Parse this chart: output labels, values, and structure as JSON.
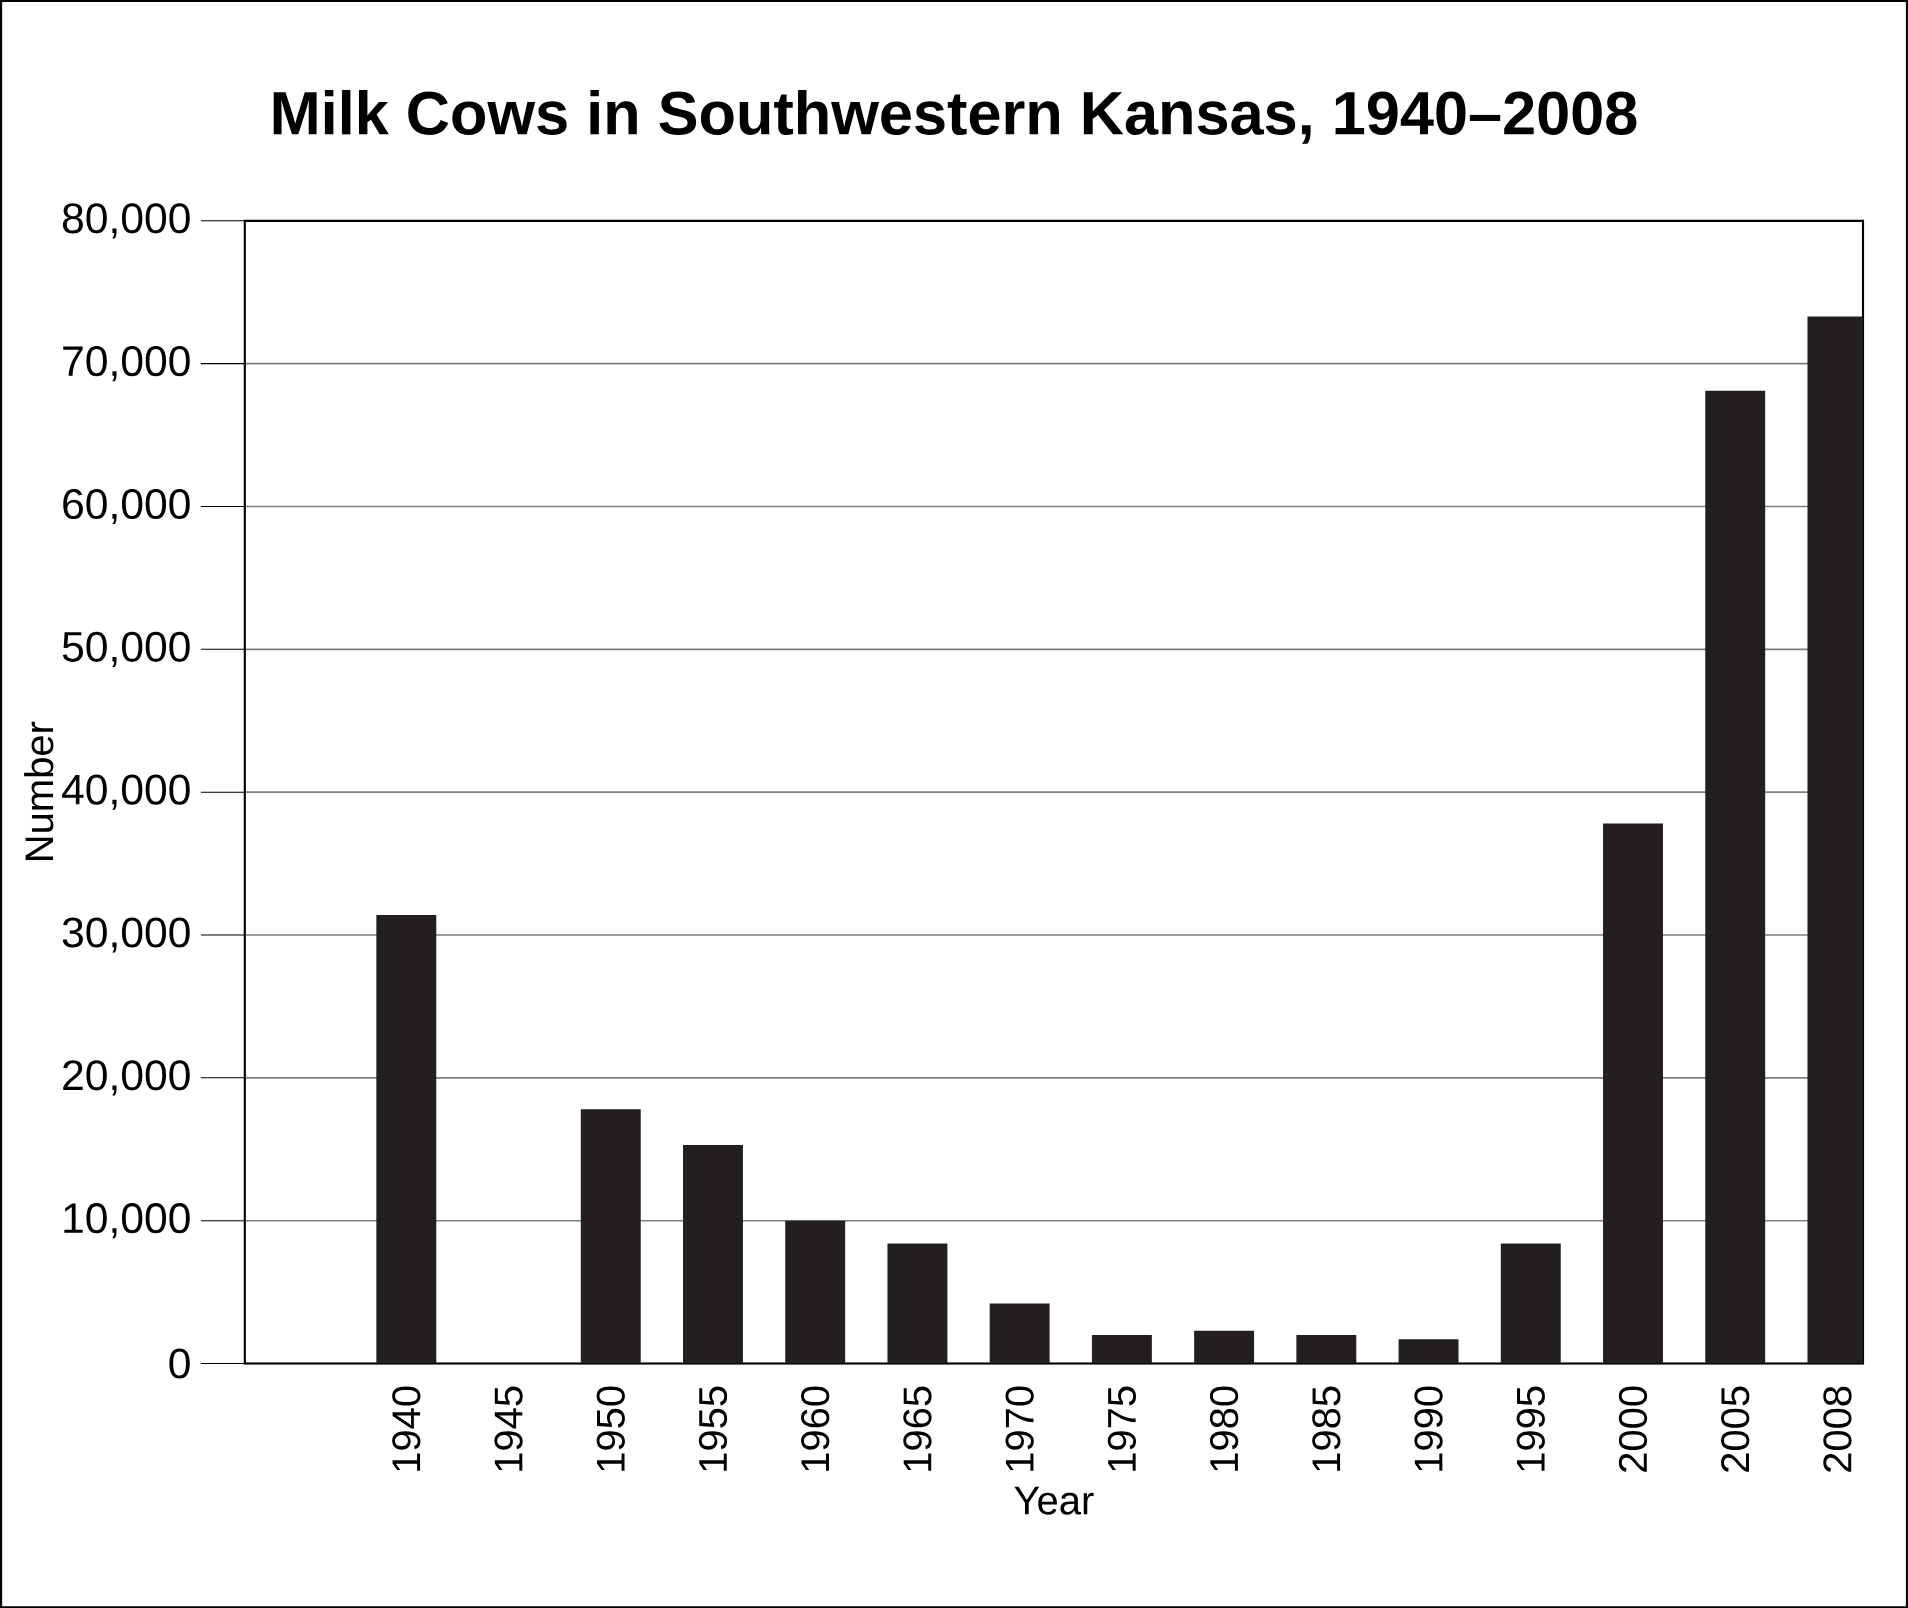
{
  "chart_data": {
    "type": "bar",
    "title": "Milk Cows in Southwestern Kansas, 1940–2008",
    "xlabel": "Year",
    "ylabel": "Number",
    "categories": [
      "1940",
      "1945",
      "1950",
      "1955",
      "1960",
      "1965",
      "1970",
      "1975",
      "1980",
      "1985",
      "1990",
      "1995",
      "2000",
      "2005",
      "2008"
    ],
    "values": [
      31400,
      null,
      17800,
      15300,
      10000,
      8400,
      4200,
      2000,
      2300,
      2000,
      1700,
      8400,
      37800,
      68100,
      73300
    ],
    "color": "#231f20",
    "ylim": [
      0,
      80000
    ],
    "yticks": [
      0,
      {
        "value": 10000,
        "label": "10,000"
      },
      {
        "value": 20000,
        "label": "20,000"
      },
      {
        "value": 30000,
        "label": "30,000"
      },
      {
        "value": 40000,
        "label": "40,000"
      },
      {
        "value": 50000,
        "label": "50,000"
      },
      {
        "value": 60000,
        "label": "60,000"
      },
      {
        "value": 70000,
        "label": "70,000"
      },
      {
        "value": 80000,
        "label": "80,000"
      }
    ],
    "grid": "y"
  }
}
